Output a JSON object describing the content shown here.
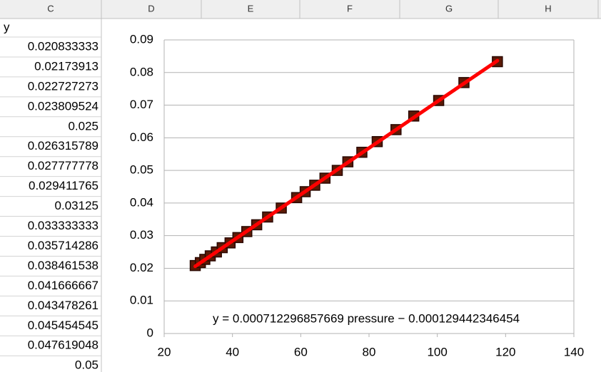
{
  "sheet": {
    "column_headers": [
      "C",
      "D",
      "E",
      "F",
      "G",
      "H"
    ],
    "column_c": [
      "y",
      "0.020833333",
      "0.02173913",
      "0.022727273",
      "0.023809524",
      "0.025",
      "0.026315789",
      "0.027777778",
      "0.029411765",
      "0.03125",
      "0.033333333",
      "0.035714286",
      "0.038461538",
      "0.041666667",
      "0.043478261",
      "0.045454545",
      "0.047619048",
      "0.05"
    ]
  },
  "chart_data": {
    "type": "scatter",
    "x": [
      29.1,
      30.6,
      31.9,
      33.5,
      35.3,
      37,
      39.3,
      41.6,
      44.2,
      47.1,
      50.3,
      54.3,
      58.8,
      61.3,
      64.1,
      67.1,
      70.7,
      73.8,
      77.9,
      82.4,
      87.9,
      93.1,
      100.4,
      107.8,
      117.6
    ],
    "series": [
      {
        "color": "#5c1a06",
        "values": [
          0.020833333,
          0.02173913,
          0.022727273,
          0.023809524,
          0.025,
          0.026315789,
          0.027777778,
          0.029411765,
          0.03125,
          0.033333333,
          0.035714286,
          0.038461538,
          0.041666667,
          0.043478261,
          0.045454545,
          0.047619048,
          0.05,
          0.052631579,
          0.055555556,
          0.058823529,
          0.0625,
          0.066666667,
          0.071428571,
          0.076923077,
          0.083333333
        ]
      }
    ],
    "trendline": {
      "color": "#ff0000",
      "slope": 0.000712296857669,
      "intercept": -0.000129442346454,
      "label": "y = 0.000712296857669 pressure − 0.000129442346454"
    },
    "xlim": [
      20,
      140
    ],
    "xticks": [
      20,
      40,
      60,
      80,
      100,
      120,
      140
    ],
    "ylim": [
      0,
      0.09
    ],
    "yticks": [
      0,
      0.01,
      0.02,
      0.03,
      0.04,
      0.05,
      0.06,
      0.07,
      0.08,
      0.09
    ],
    "grid": true
  }
}
